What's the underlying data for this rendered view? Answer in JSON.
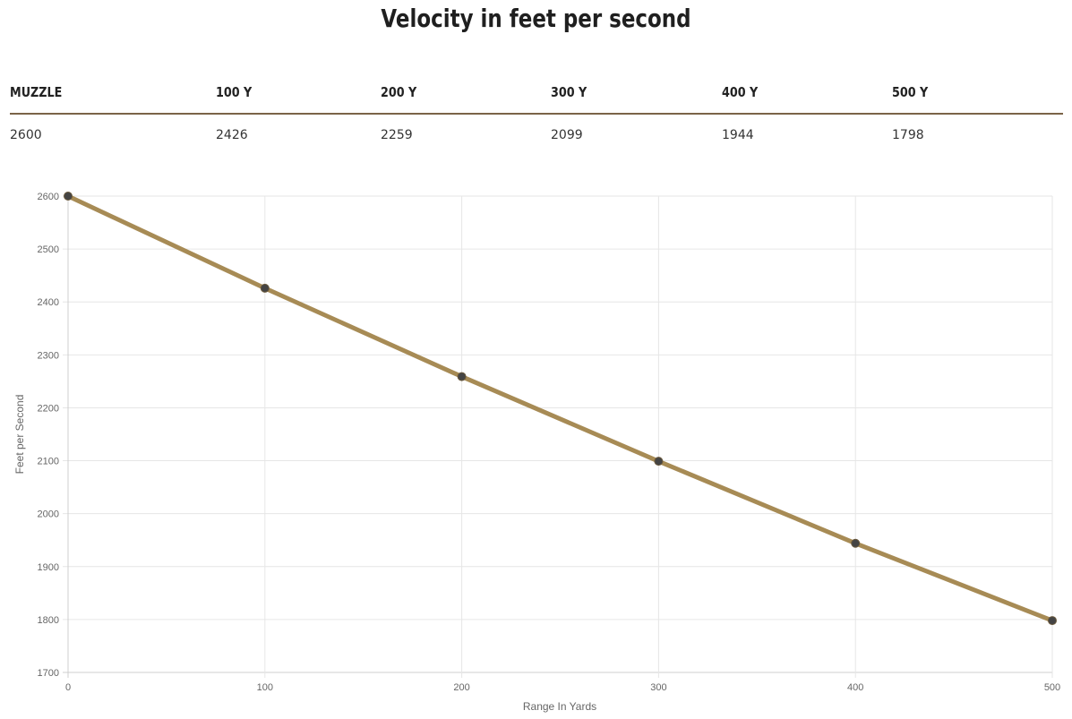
{
  "title": "Velocity in feet per second",
  "table": {
    "headers": [
      "MUZZLE",
      "100 Y",
      "200 Y",
      "300 Y",
      "400 Y",
      "500 Y"
    ],
    "values": [
      "2600",
      "2426",
      "2259",
      "2099",
      "1944",
      "1798"
    ]
  },
  "chart_data": {
    "type": "line",
    "x": [
      0,
      100,
      200,
      300,
      400,
      500
    ],
    "series": [
      {
        "values": [
          2600,
          2426,
          2259,
          2099,
          1944,
          1798
        ]
      }
    ],
    "xlabel": "Range In Yards",
    "ylabel": "Feet per Second",
    "xlim": [
      0,
      500
    ],
    "ylim": [
      1700,
      2600
    ],
    "xticks": [
      "0",
      "100",
      "200",
      "300",
      "400",
      "500"
    ],
    "yticks": [
      "1700",
      "1800",
      "1900",
      "2000",
      "2100",
      "2200",
      "2300",
      "2400",
      "2500",
      "2600"
    ],
    "grid": true,
    "colors": {
      "line": "#a78b55",
      "point": "#444444",
      "grid": "#e6e6e6"
    }
  }
}
